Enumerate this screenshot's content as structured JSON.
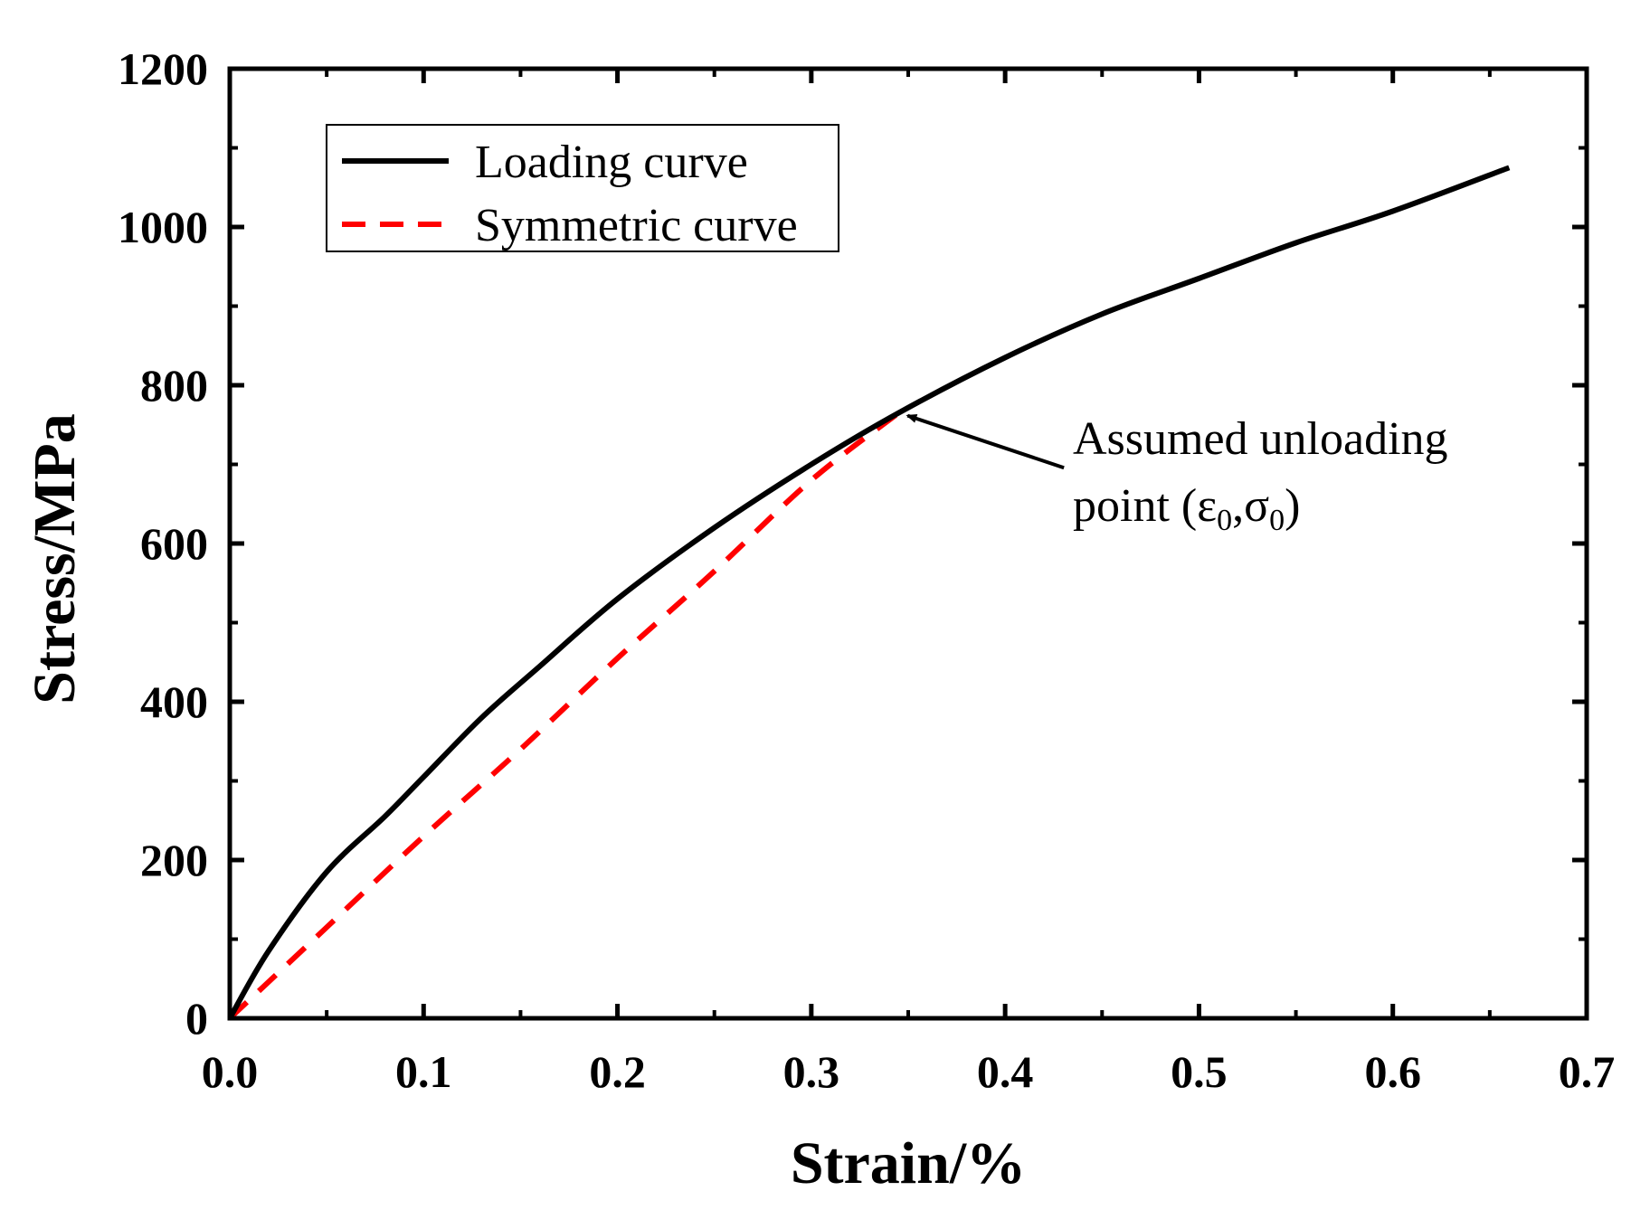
{
  "chart_data": {
    "type": "line",
    "title": "",
    "xlabel": "Strain/%",
    "ylabel": "Stress/MPa",
    "xlim": [
      0.0,
      0.7
    ],
    "ylim": [
      0,
      1200
    ],
    "x_ticks": [
      0.0,
      0.1,
      0.2,
      0.3,
      0.4,
      0.5,
      0.6,
      0.7
    ],
    "x_tick_labels": [
      "0.0",
      "0.1",
      "0.2",
      "0.3",
      "0.4",
      "0.5",
      "0.6",
      "0.7"
    ],
    "y_ticks": [
      0,
      200,
      400,
      600,
      800,
      1000,
      1200
    ],
    "y_tick_labels": [
      "0",
      "200",
      "400",
      "600",
      "800",
      "1000",
      "1200"
    ],
    "grid": false,
    "legend_position": "top-left",
    "series": [
      {
        "name": "Loading curve",
        "color": "#000000",
        "style": "solid",
        "x": [
          0.0,
          0.02,
          0.05,
          0.08,
          0.1,
          0.13,
          0.16,
          0.2,
          0.25,
          0.3,
          0.345,
          0.4,
          0.45,
          0.5,
          0.55,
          0.6,
          0.66
        ],
        "y": [
          0,
          85,
          185,
          255,
          305,
          380,
          445,
          530,
          620,
          700,
          765,
          835,
          890,
          935,
          980,
          1020,
          1075
        ]
      },
      {
        "name": "Symmetric curve",
        "color": "#ff0000",
        "style": "dashed",
        "x": [
          0.0,
          0.05,
          0.1,
          0.15,
          0.2,
          0.25,
          0.3,
          0.345
        ],
        "y": [
          0,
          115,
          230,
          340,
          455,
          565,
          680,
          765
        ]
      }
    ],
    "annotation": {
      "line1": "Assumed unloading",
      "line2_prefix": "point  (",
      "epsilon": "ε",
      "sigma": "σ",
      "subscript": "0",
      "comma": ",",
      "close": ")",
      "target_x": 0.345,
      "target_y": 765,
      "text_x": 0.435,
      "text_y": 730
    }
  }
}
